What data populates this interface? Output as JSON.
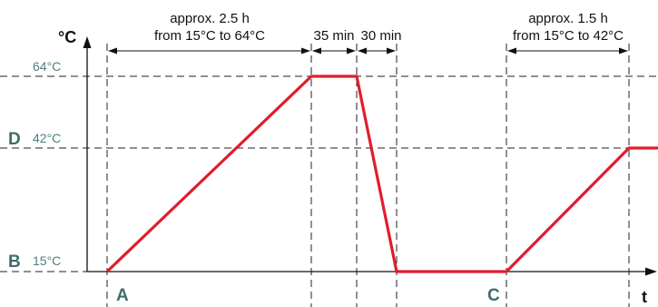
{
  "axes": {
    "y_unit": "°C",
    "x_unit": "t"
  },
  "levels": [
    {
      "letter": "",
      "label": "64°C",
      "temperature": 64
    },
    {
      "letter": "D",
      "label": "42°C",
      "temperature": 42
    },
    {
      "letter": "B",
      "label": "15°C",
      "temperature": 15
    }
  ],
  "points": {
    "a": "A",
    "c": "C"
  },
  "annotations": {
    "heat_time": "approx. 2.5 h",
    "heat_range": "from 15°C to 64°C",
    "hold": "35 min",
    "cool": "30 min",
    "reheat_time": "approx. 1.5 h",
    "reheat_range": "from 15°C to 42°C"
  },
  "colors": {
    "curve": "#e01e2b",
    "level_text": "#4f7f7c",
    "level_letter": "#3e6e6b",
    "line": "#222222"
  }
}
